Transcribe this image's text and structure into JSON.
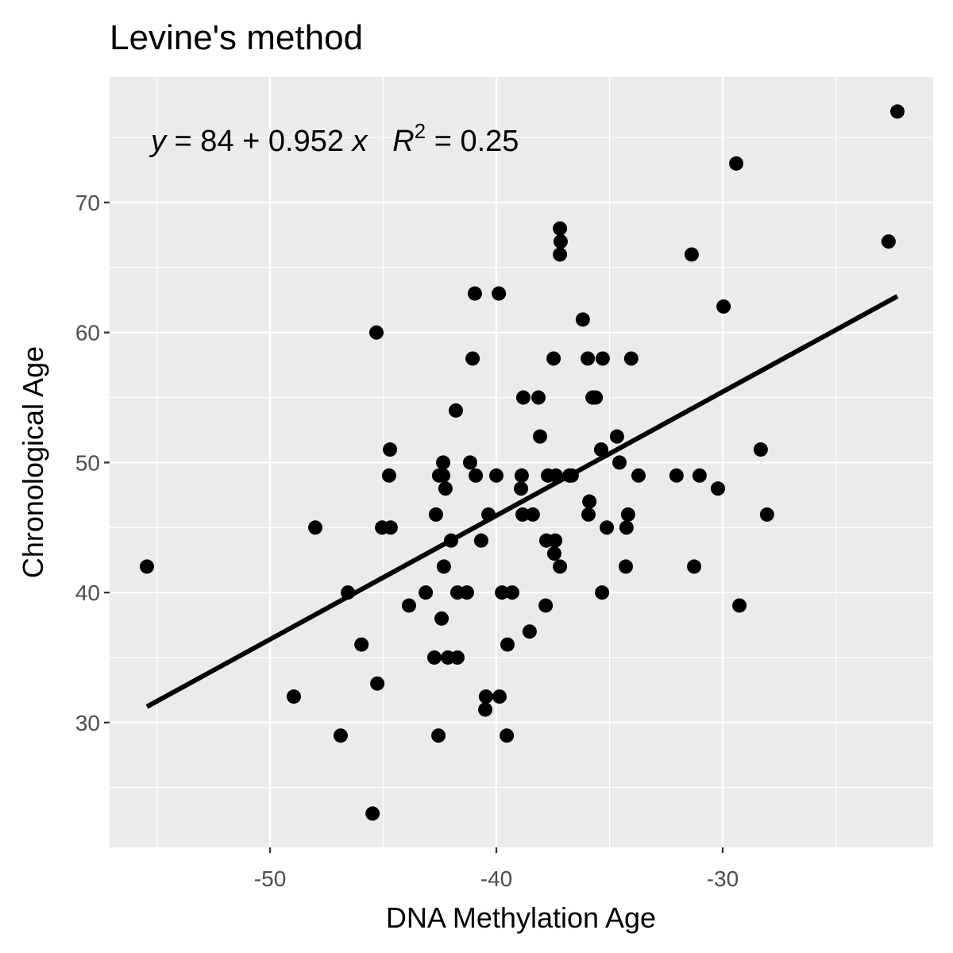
{
  "chart_data": {
    "type": "scatter",
    "title": "Levine's method",
    "x_label": "DNA Methylation Age",
    "y_label": "Chronological Age",
    "xlim": [
      -57.09,
      -20.7
    ],
    "ylim": [
      20.4,
      79.65
    ],
    "xticks": [
      -50,
      -40,
      -30
    ],
    "yticks": [
      30,
      40,
      50,
      60,
      70
    ],
    "x_minor_ticks": [
      -55,
      -45,
      -35,
      -25
    ],
    "y_minor_ticks": [
      25,
      35,
      45,
      55,
      65,
      75
    ],
    "grid": true,
    "color": "#000000",
    "x": [
      -55.44,
      -45.3,
      -48.0,
      -48.95,
      -46.88,
      -46.56,
      -45.96,
      -45.47,
      -45.26,
      -45.05,
      -44.67,
      -44.7,
      -44.74,
      -43.86,
      -43.12,
      -42.74,
      -42.67,
      -42.53,
      -42.56,
      -42.35,
      -42.35,
      -42.42,
      -42.32,
      -42.25,
      -42.14,
      -42.0,
      -41.79,
      -41.72,
      -41.72,
      -41.3,
      -41.16,
      -41.05,
      -40.95,
      -40.91,
      -40.67,
      -40.49,
      -40.46,
      -40.35,
      -40.0,
      -39.89,
      -39.86,
      -39.75,
      -39.54,
      -39.51,
      -39.3,
      -38.88,
      -38.91,
      -38.81,
      -38.84,
      -38.53,
      -38.39,
      -38.14,
      -38.07,
      -37.82,
      -37.79,
      -37.72,
      -37.47,
      -37.44,
      -37.4,
      -37.37,
      -37.19,
      -37.19,
      -37.16,
      -37.19,
      -36.77,
      -36.67,
      -36.18,
      -35.96,
      -35.93,
      -35.89,
      -35.75,
      -35.61,
      -35.37,
      -35.33,
      -35.3,
      -35.12,
      -34.67,
      -34.56,
      -34.28,
      -34.25,
      -34.18,
      -34.04,
      -33.72,
      -32.04,
      -31.37,
      -31.26,
      -31.02,
      -30.21,
      -29.96,
      -29.4,
      -29.26,
      -28.32,
      -28.04,
      -22.67,
      -22.28
    ],
    "values": [
      42,
      60,
      45,
      32,
      29,
      40,
      36,
      23,
      33,
      45,
      45,
      51,
      49,
      39,
      40,
      35,
      46,
      49,
      29,
      49,
      50,
      38,
      42,
      48,
      35,
      44,
      54,
      35,
      40,
      40,
      50,
      58,
      63,
      49,
      44,
      31,
      32,
      46,
      49,
      63,
      32,
      40,
      29,
      36,
      40,
      49,
      48,
      55,
      46,
      37,
      46,
      55,
      52,
      39,
      44,
      49,
      58,
      43,
      44,
      49,
      42,
      68,
      67,
      66,
      49,
      49,
      61,
      58,
      46,
      47,
      55,
      55,
      51,
      40,
      58,
      45,
      52,
      50,
      42,
      45,
      46,
      58,
      49,
      49,
      66,
      42,
      49,
      48,
      62,
      73,
      39,
      51,
      46,
      67,
      77
    ],
    "fit": {
      "intercept": 84,
      "slope": 0.952,
      "x_range": [
        -55.44,
        -22.28
      ],
      "color": "#000000"
    },
    "annotation": [
      {
        "text": "y",
        "italic": true
      },
      {
        "text": " = 84 + 0.952 "
      },
      {
        "text": "x",
        "italic": true
      },
      {
        "text": "   "
      },
      {
        "text": "R",
        "italic": true
      },
      {
        "text": "2",
        "superscript": true
      },
      {
        "text": " = 0.25"
      }
    ]
  }
}
